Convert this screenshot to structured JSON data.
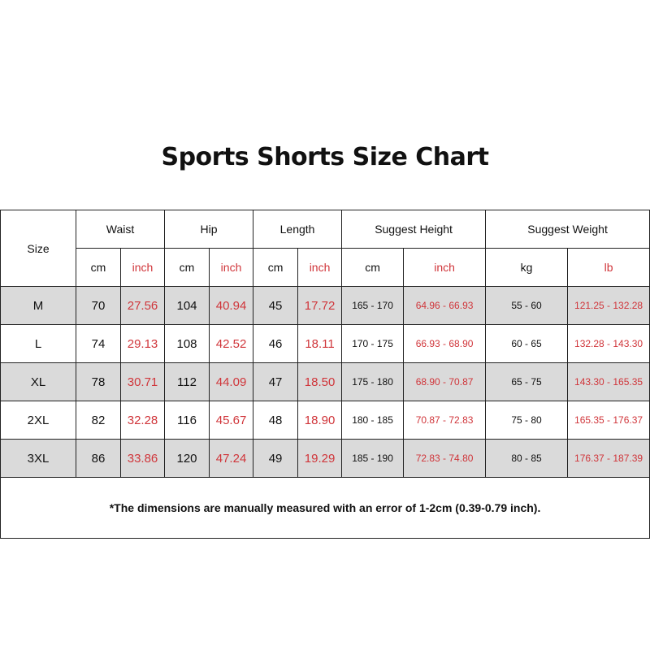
{
  "title": "Sports Shorts Size Chart",
  "header": {
    "size": "Size",
    "groups": [
      "Waist",
      "Hip",
      "Length",
      "Suggest Height",
      "Suggest Weight"
    ],
    "units": [
      "cm",
      "inch",
      "cm",
      "inch",
      "cm",
      "inch",
      "cm",
      "inch",
      "kg",
      "lb"
    ]
  },
  "rows": [
    [
      "M",
      "70",
      "27.56",
      "104",
      "40.94",
      "45",
      "17.72",
      "165 - 170",
      "64.96 - 66.93",
      "55 - 60",
      "121.25 - 132.28"
    ],
    [
      "L",
      "74",
      "29.13",
      "108",
      "42.52",
      "46",
      "18.11",
      "170 - 175",
      "66.93 - 68.90",
      "60 - 65",
      "132.28 - 143.30"
    ],
    [
      "XL",
      "78",
      "30.71",
      "112",
      "44.09",
      "47",
      "18.50",
      "175 - 180",
      "68.90 - 70.87",
      "65 - 75",
      "143.30 - 165.35"
    ],
    [
      "2XL",
      "82",
      "32.28",
      "116",
      "45.67",
      "48",
      "18.90",
      "180 - 185",
      "70.87 - 72.83",
      "75 - 80",
      "165.35 - 176.37"
    ],
    [
      "3XL",
      "86",
      "33.86",
      "120",
      "47.24",
      "49",
      "19.29",
      "185 - 190",
      "72.83 - 74.80",
      "80 - 85",
      "176.37 - 187.39"
    ]
  ],
  "note": "*The dimensions are manually measured with an error of 1-2cm (0.39-0.79 inch).",
  "colors": {
    "inch_text": "#d0353a",
    "row_shade": "#dadada",
    "border": "#222222"
  }
}
